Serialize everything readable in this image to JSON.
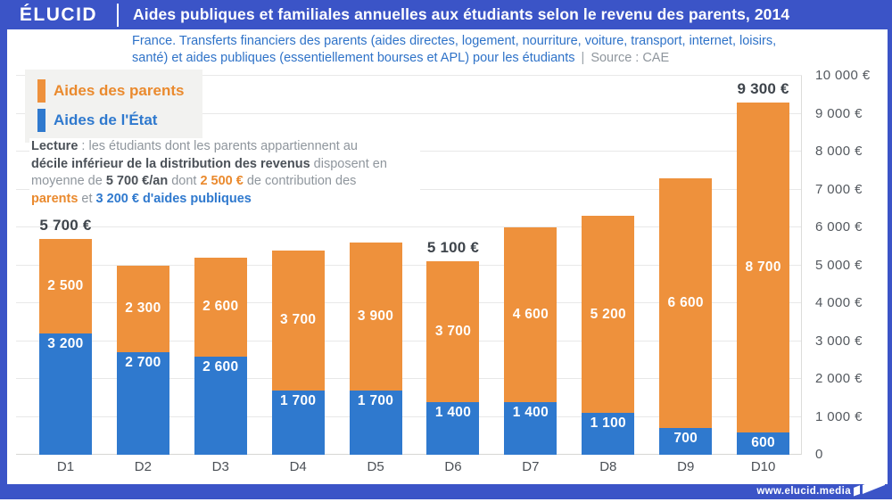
{
  "brand": {
    "logo": "ÉLUCID",
    "site": "www.elucid.media"
  },
  "header": {
    "title": "Aides publiques et familiales annuelles aux étudiants selon le revenu des parents, 2014"
  },
  "subtitle": {
    "line1": "France. Transferts financiers des parents (aides directes, logement, nourriture, voiture, transport, internet, loisirs,",
    "line2": "santé) et aides publiques (essentiellement bourses et APL) pour les étudiants",
    "separator": "|",
    "source": "Source : CAE"
  },
  "legend": [
    {
      "label": "Aides des parents",
      "color": "#ee913c",
      "text_color": "#ea8a2e"
    },
    {
      "label": "Aides de l'État",
      "color": "#2f79ce",
      "text_color": "#2f79ce"
    }
  ],
  "lecture": {
    "lines": [
      [
        {
          "text": "Lecture",
          "style": "bold-dark"
        },
        {
          "text": " : les étudiants dont les parents appartiennent au",
          "style": "normal"
        }
      ],
      [
        {
          "text": "décile inférieur de la distribution des revenus",
          "style": "bold-dark"
        },
        {
          "text": " disposent en",
          "style": "normal"
        }
      ],
      [
        {
          "text": "moyenne de ",
          "style": "normal"
        },
        {
          "text": "5 700 €/an",
          "style": "bold-dark"
        },
        {
          "text": " dont ",
          "style": "normal"
        },
        {
          "text": "2 500 €",
          "style": "bold-orange"
        },
        {
          "text": " de contribution des",
          "style": "normal"
        }
      ],
      [
        {
          "text": "parents",
          "style": "bold-orange"
        },
        {
          "text": " et ",
          "style": "normal"
        },
        {
          "text": "3 200 € d'aides publiques",
          "style": "bold-blue"
        }
      ]
    ]
  },
  "chart_data": {
    "type": "bar",
    "stacked": true,
    "title": "Aides publiques et familiales annuelles aux étudiants selon le revenu des parents, 2014",
    "source": "CAE",
    "categories": [
      "D1",
      "D2",
      "D3",
      "D4",
      "D5",
      "D6",
      "D7",
      "D8",
      "D9",
      "D10"
    ],
    "series": [
      {
        "name": "Aides de l'État",
        "color": "#2f79ce",
        "values": [
          3200,
          2700,
          2600,
          1700,
          1700,
          1400,
          1400,
          1100,
          700,
          600
        ],
        "labels": [
          "3 200",
          "2 700",
          "2 600",
          "1 700",
          "1 700",
          "1 400",
          "1 400",
          "1 100",
          "700",
          "600"
        ]
      },
      {
        "name": "Aides des parents",
        "color": "#ee913c",
        "values": [
          2500,
          2300,
          2600,
          3700,
          3900,
          3700,
          4600,
          5200,
          6600,
          8700
        ],
        "labels": [
          "2 500",
          "2 300",
          "2 600",
          "3 700",
          "3 900",
          "3 700",
          "4 600",
          "5 200",
          "6 600",
          "8 700"
        ]
      }
    ],
    "total_labels": [
      "5 700 €",
      null,
      null,
      null,
      null,
      "5 100 €",
      null,
      null,
      null,
      "9 300 €"
    ],
    "ylim": [
      0,
      10000
    ],
    "ytick_step": 1000,
    "yticks": [
      {
        "value": 0,
        "label": "0"
      },
      {
        "value": 1000,
        "label": "1 000 €"
      },
      {
        "value": 2000,
        "label": "2 000 €"
      },
      {
        "value": 3000,
        "label": "3 000 €"
      },
      {
        "value": 4000,
        "label": "4 000 €"
      },
      {
        "value": 5000,
        "label": "5 000 €"
      },
      {
        "value": 6000,
        "label": "6 000 €"
      },
      {
        "value": 7000,
        "label": "7 000 €"
      },
      {
        "value": 8000,
        "label": "8 000 €"
      },
      {
        "value": 9000,
        "label": "9 000 €"
      },
      {
        "value": 10000,
        "label": "10 000 €"
      }
    ],
    "grid": true,
    "legend_position": "top-left",
    "xlabel": "",
    "ylabel": ""
  }
}
